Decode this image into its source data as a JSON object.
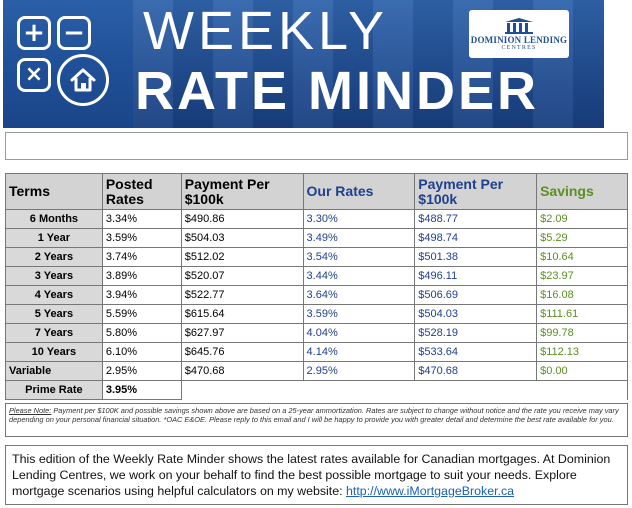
{
  "banner": {
    "title_line1": "WEEKLY",
    "title_line2": "RATE MINDER",
    "logo_brand": "DOMINION LENDING",
    "logo_sub": "CENTRES",
    "icons": [
      "plus-icon",
      "minus-icon",
      "times-icon",
      "house-icon",
      "pillars-icon"
    ],
    "colors": {
      "banner_blue": "#1f4f96",
      "rate_blue": "#1f3f8f",
      "savings_green": "#5b8f22"
    }
  },
  "table": {
    "headers": {
      "terms": "Terms",
      "posted_rates": "Posted Rates",
      "payment1": "Payment Per $100k",
      "our_rates": "Our Rates",
      "payment2": "Payment Per $100k",
      "savings": "Savings"
    },
    "rows": [
      {
        "term": "6 Months",
        "posted": "3.34%",
        "pay1": "$490.86",
        "our": "3.30%",
        "pay2": "$488.77",
        "sav": "$2.09"
      },
      {
        "term": "1 Year",
        "posted": "3.59%",
        "pay1": "$504.03",
        "our": "3.49%",
        "pay2": "$498.74",
        "sav": "$5.29"
      },
      {
        "term": "2 Years",
        "posted": "3.74%",
        "pay1": "$512.02",
        "our": "3.54%",
        "pay2": "$501.38",
        "sav": "$10.64"
      },
      {
        "term": "3 Years",
        "posted": "3.89%",
        "pay1": "$520.07",
        "our": "3.44%",
        "pay2": "$496.11",
        "sav": "$23.97"
      },
      {
        "term": "4 Years",
        "posted": "3.94%",
        "pay1": "$522.77",
        "our": "3.64%",
        "pay2": "$506.69",
        "sav": "$16.08"
      },
      {
        "term": "5 Years",
        "posted": "5.59%",
        "pay1": "$615.64",
        "our": "3.59%",
        "pay2": "$504.03",
        "sav": "$111.61"
      },
      {
        "term": "7 Years",
        "posted": "5.80%",
        "pay1": "$627.97",
        "our": "4.04%",
        "pay2": "$528.19",
        "sav": "$99.78"
      },
      {
        "term": "10 Years",
        "posted": "6.10%",
        "pay1": "$645.76",
        "our": "4.14%",
        "pay2": "$533.64",
        "sav": "$112.13"
      },
      {
        "term": "Variable",
        "posted": "2.95%",
        "pay1": "$470.68",
        "our": "2.95%",
        "pay2": "$470.68",
        "sav": "$0.00"
      }
    ],
    "prime": {
      "label": "Prime Rate",
      "value": "3.95%"
    }
  },
  "note": {
    "lead": "Please Note:",
    "text": " Payment per $100K and possible savings shown above are based on a 25-year ammortization. Rates are subject to change without notice and the rate you receive may vary depending on your personal financial situation. *OAC E&OE. Please reply to this email and I will be happy to provide you with greater detail and determine the best rate available for you."
  },
  "info": {
    "text": "This edition of the Weekly Rate Minder shows the latest rates available for Canadian mortgages. At Dominion Lending Centres, we work on your behalf to find the best possible mortgage to suit your needs. Explore mortgage scenarios using helpful calculators on my website: ",
    "link": "http://www.iMortgageBroker.ca"
  }
}
